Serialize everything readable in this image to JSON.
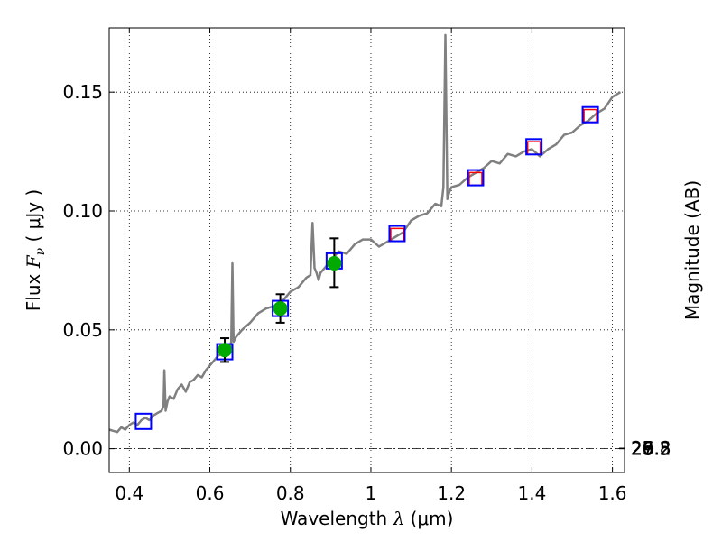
{
  "chart_data": {
    "type": "line",
    "xlabel": {
      "prefix": "Wavelength  ",
      "symbol": "λ",
      "unit": " (μm)"
    },
    "ylabel": {
      "prefix": "Flux  ",
      "symbol": "F",
      "sub": "ν",
      "unit": "  ( μJy )"
    },
    "y2label": "Magnitude (AB)",
    "xlim": [
      0.35,
      1.63
    ],
    "ylim": [
      -0.01,
      0.177
    ],
    "grid": true,
    "x_ticks": [
      {
        "value": 0.4,
        "label": "0.4"
      },
      {
        "value": 0.6,
        "label": "0.6"
      },
      {
        "value": 0.8,
        "label": "0.8"
      },
      {
        "value": 1.0,
        "label": "1"
      },
      {
        "value": 1.2,
        "label": "1.2"
      },
      {
        "value": 1.4,
        "label": "1.4"
      },
      {
        "value": 1.6,
        "label": "1.6"
      }
    ],
    "y_ticks": [
      {
        "value": 0.0,
        "label": "0.00"
      },
      {
        "value": 0.05,
        "label": "0.05"
      },
      {
        "value": 0.1,
        "label": "0.10"
      },
      {
        "value": 0.15,
        "label": "0.15"
      }
    ],
    "y2_ticks": [
      {
        "value": 25.8,
        "label": "25.8"
      },
      {
        "value": 26,
        "label": "26"
      },
      {
        "value": 26.2,
        "label": "26.2"
      },
      {
        "value": 26.5,
        "label": "26.5"
      },
      {
        "value": 27,
        "label": "27"
      },
      {
        "value": 27.5,
        "label": "27.5"
      },
      {
        "value": 28,
        "label": "28"
      },
      {
        "value": 29,
        "label": "29"
      }
    ],
    "zero_line": 0,
    "colors": {
      "spectrum": "#808080",
      "blue_box": "#0000ff",
      "red_box": "#ff0000",
      "observed": "#00aa00",
      "errorbar": "#000000"
    },
    "spectrum": {
      "x": [
        0.35,
        0.37,
        0.38,
        0.39,
        0.4,
        0.41,
        0.42,
        0.43,
        0.44,
        0.45,
        0.46,
        0.47,
        0.48,
        0.485,
        0.487,
        0.49,
        0.495,
        0.5,
        0.51,
        0.52,
        0.53,
        0.54,
        0.55,
        0.56,
        0.57,
        0.58,
        0.59,
        0.6,
        0.61,
        0.62,
        0.63,
        0.64,
        0.65,
        0.653,
        0.656,
        0.659,
        0.665,
        0.68,
        0.7,
        0.72,
        0.74,
        0.76,
        0.78,
        0.8,
        0.82,
        0.84,
        0.85,
        0.855,
        0.86,
        0.865,
        0.87,
        0.875,
        0.88,
        0.9,
        0.92,
        0.94,
        0.96,
        0.98,
        1.0,
        1.02,
        1.04,
        1.06,
        1.08,
        1.1,
        1.12,
        1.14,
        1.16,
        1.175,
        1.18,
        1.185,
        1.19,
        1.195,
        1.2,
        1.22,
        1.24,
        1.26,
        1.28,
        1.3,
        1.32,
        1.34,
        1.36,
        1.38,
        1.4,
        1.42,
        1.44,
        1.46,
        1.48,
        1.5,
        1.52,
        1.54,
        1.56,
        1.58,
        1.6,
        1.62
      ],
      "y": [
        0.008,
        0.007,
        0.009,
        0.008,
        0.01,
        0.011,
        0.01,
        0.012,
        0.013,
        0.012,
        0.014,
        0.015,
        0.016,
        0.018,
        0.033,
        0.016,
        0.02,
        0.022,
        0.021,
        0.025,
        0.027,
        0.024,
        0.028,
        0.029,
        0.031,
        0.03,
        0.033,
        0.035,
        0.037,
        0.039,
        0.04,
        0.041,
        0.042,
        0.045,
        0.078,
        0.045,
        0.047,
        0.05,
        0.053,
        0.057,
        0.059,
        0.06,
        0.062,
        0.066,
        0.068,
        0.072,
        0.073,
        0.095,
        0.076,
        0.074,
        0.071,
        0.074,
        0.075,
        0.079,
        0.083,
        0.082,
        0.086,
        0.088,
        0.088,
        0.085,
        0.087,
        0.089,
        0.091,
        0.096,
        0.098,
        0.099,
        0.103,
        0.102,
        0.11,
        0.174,
        0.105,
        0.108,
        0.11,
        0.111,
        0.114,
        0.116,
        0.118,
        0.121,
        0.12,
        0.124,
        0.123,
        0.125,
        0.126,
        0.123,
        0.126,
        0.128,
        0.132,
        0.133,
        0.136,
        0.138,
        0.141,
        0.143,
        0.148,
        0.15
      ]
    },
    "model_photometry": {
      "x": [
        0.435,
        0.637,
        0.775,
        0.909,
        1.065,
        1.26,
        1.405,
        1.545
      ],
      "y": [
        0.0115,
        0.0408,
        0.059,
        0.079,
        0.0905,
        0.114,
        0.127,
        0.1405
      ]
    },
    "synthetic_nir": {
      "x": [
        1.065,
        1.26,
        1.405,
        1.545
      ],
      "y": [
        0.09,
        0.1135,
        0.1265,
        0.14
      ]
    },
    "observed": {
      "x": [
        0.637,
        0.775,
        0.909
      ],
      "y": [
        0.0415,
        0.059,
        0.078
      ],
      "err_low": [
        0.005,
        0.006,
        0.01
      ],
      "err_high": [
        0.005,
        0.006,
        0.0105
      ]
    }
  }
}
